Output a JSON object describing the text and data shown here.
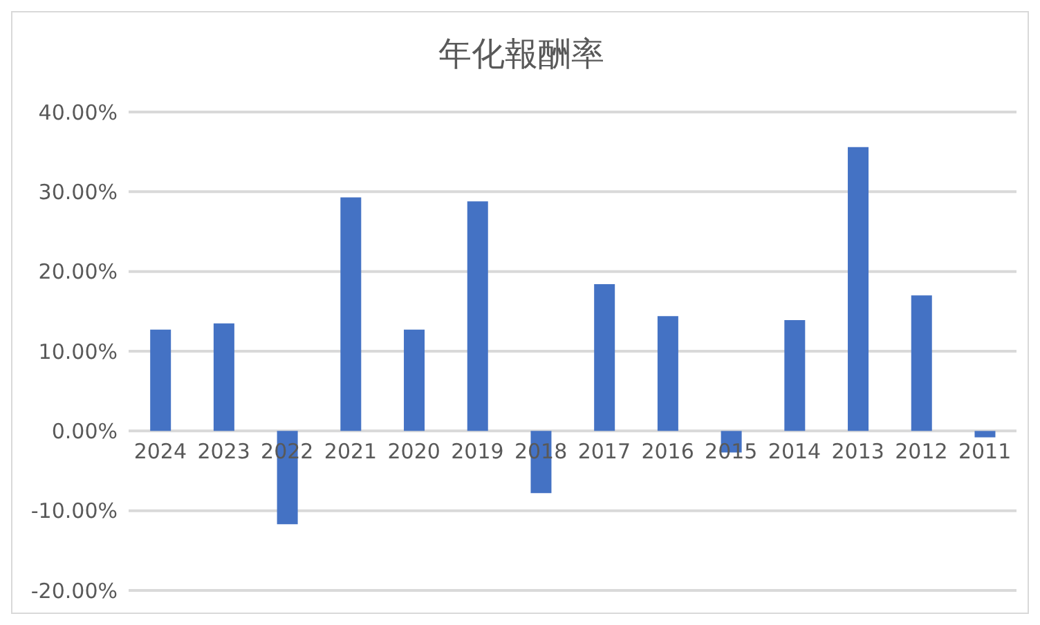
{
  "chart_data": {
    "type": "bar",
    "title": "年化報酬率",
    "categories": [
      "2024",
      "2023",
      "2022",
      "2021",
      "2020",
      "2019",
      "2018",
      "2017",
      "2016",
      "2015",
      "2014",
      "2013",
      "2012",
      "2011"
    ],
    "values": [
      12.7,
      13.5,
      -11.7,
      29.3,
      12.7,
      28.8,
      -7.8,
      18.4,
      14.4,
      -2.7,
      13.9,
      35.6,
      17.0,
      -0.8
    ],
    "color": "#4472c4",
    "ylim": [
      -20,
      40
    ],
    "yticks": [
      {
        "value": -20,
        "label": "-20.00%"
      },
      {
        "value": -10,
        "label": "-10.00%"
      },
      {
        "value": 0,
        "label": "0.00%"
      },
      {
        "value": 10,
        "label": "10.00%"
      },
      {
        "value": 20,
        "label": "20.00%"
      },
      {
        "value": 30,
        "label": "30.00%"
      },
      {
        "value": 40,
        "label": "40.00%"
      }
    ],
    "grid": "y",
    "legend": false
  }
}
